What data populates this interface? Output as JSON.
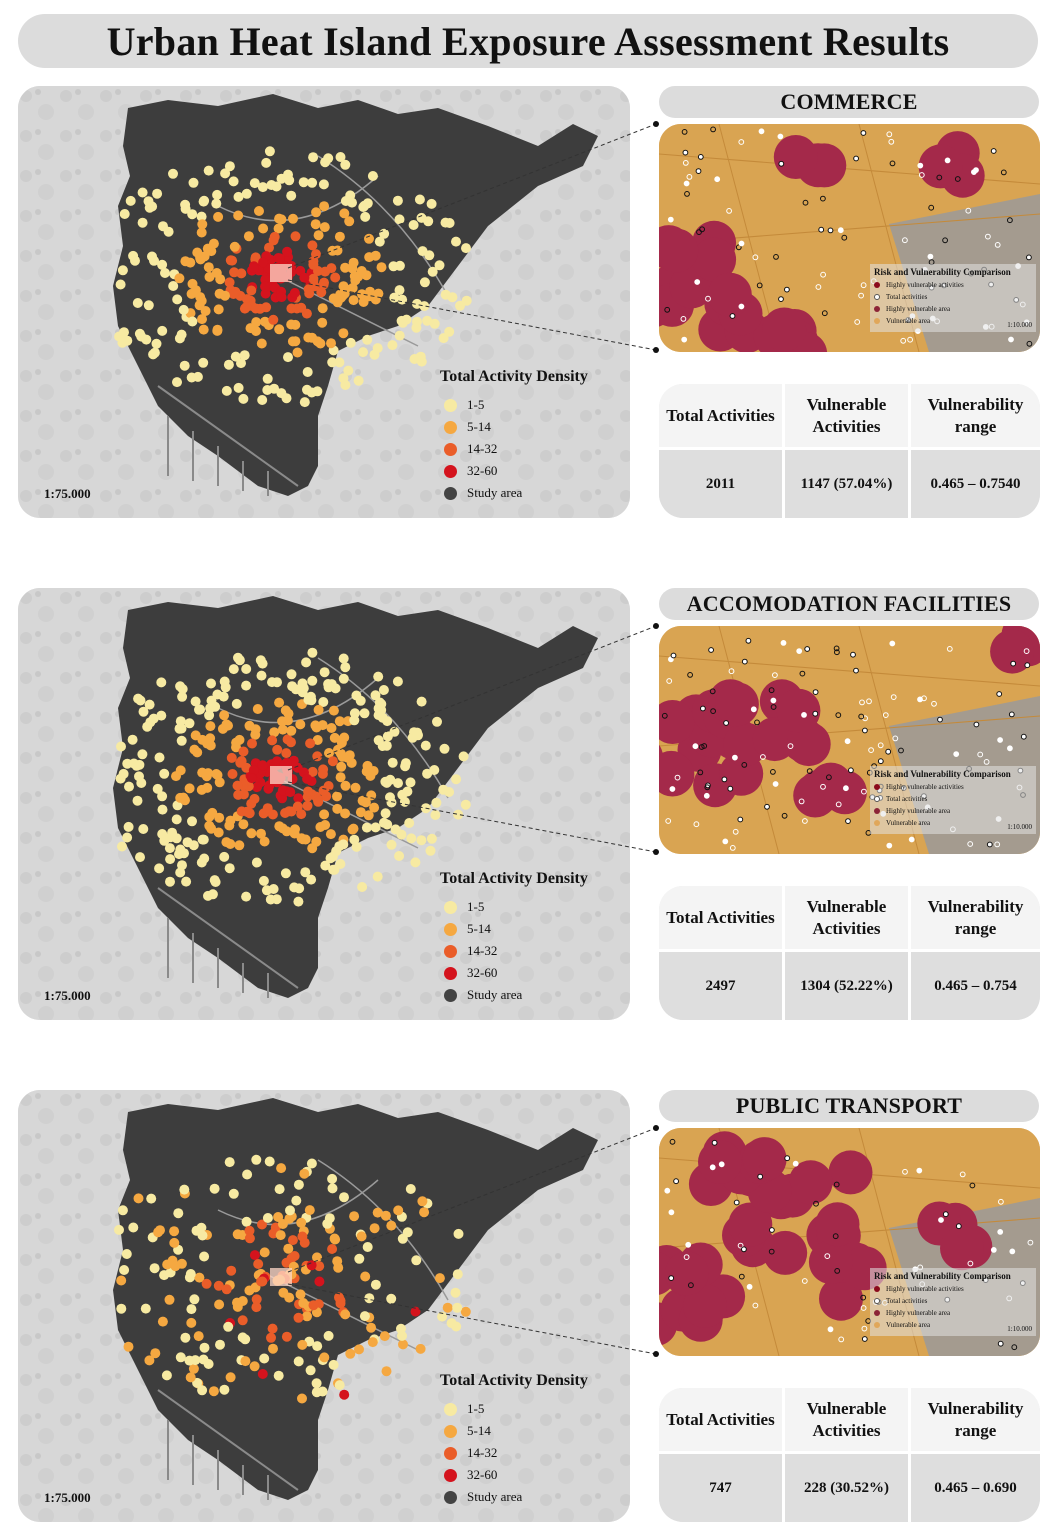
{
  "title": "Urban Heat Island Exposure Assessment Results",
  "legend": {
    "title": "Total Activity Density",
    "items": [
      {
        "label": "1-5",
        "color": "#f7eaa2"
      },
      {
        "label": "5-14",
        "color": "#f5a841"
      },
      {
        "label": "14-32",
        "color": "#ea5d29"
      },
      {
        "label": "32-60",
        "color": "#d4131d"
      },
      {
        "label": "Study area",
        "color": "#444444"
      }
    ]
  },
  "map_scale": "1:75.000",
  "inset_legend": {
    "title": "Risk and Vulnerability Comparison",
    "items": [
      {
        "label": "Highly vulnerable activities",
        "color": "#8b0a1c"
      },
      {
        "label": "Total activities",
        "color": "#ffffff"
      },
      {
        "label": "Highly vulnerable area",
        "color": "#8c2437"
      },
      {
        "label": "Vulnerable area",
        "color": "#e0a75a"
      }
    ],
    "scale": "1:10.000"
  },
  "stats_headers": {
    "total": "Total Activities",
    "vulnerable": "Vulnerable Activities",
    "range": "Vulnerability range"
  },
  "sections": [
    {
      "category": "COMMERCE",
      "total": "2011",
      "vulnerable": "1147 (57.04%)",
      "range": "0.465 – 0.7540"
    },
    {
      "category": "ACCOMODATION FACILITIES",
      "total": "2497",
      "vulnerable": "1304 (52.22%)",
      "range": "0.465 – 0.754"
    },
    {
      "category": "PUBLIC TRANSPORT",
      "total": "747",
      "vulnerable": "228 (30.52%)",
      "range": "0.465 – 0.690"
    }
  ]
}
